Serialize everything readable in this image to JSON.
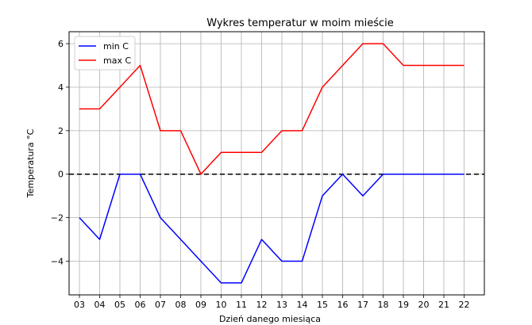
{
  "chart_data": {
    "type": "line",
    "title": "Wykres temperatur w moim mieście",
    "xlabel": "Dzień danego miesiąca",
    "ylabel": "Temperatura °C",
    "categories": [
      "03",
      "04",
      "05",
      "06",
      "07",
      "08",
      "09",
      "10",
      "11",
      "12",
      "13",
      "14",
      "15",
      "16",
      "17",
      "18",
      "19",
      "20",
      "21",
      "22"
    ],
    "series": [
      {
        "name": "min C",
        "color": "#0000ff",
        "values": [
          -2,
          -3,
          0,
          0,
          -2,
          -3,
          -4,
          -5,
          -5,
          -3,
          -4,
          -4,
          -1,
          0,
          -1,
          0,
          0,
          0,
          0,
          0
        ]
      },
      {
        "name": "max C",
        "color": "#ff0000",
        "values": [
          3,
          3,
          4,
          5,
          2,
          2,
          0,
          1,
          1,
          1,
          2,
          2,
          4,
          5,
          6,
          6,
          5,
          5,
          5,
          5
        ]
      }
    ],
    "ylim": [
      -5.55,
      6.55
    ],
    "yticks": [
      -4,
      -2,
      0,
      2,
      4,
      6
    ],
    "ytick_labels": [
      "−4",
      "−2",
      "0",
      "2",
      "4",
      "6"
    ],
    "reference_line": {
      "y": 0,
      "style": "dashed",
      "color": "#000000"
    },
    "grid": true,
    "legend_position": "upper-left"
  }
}
